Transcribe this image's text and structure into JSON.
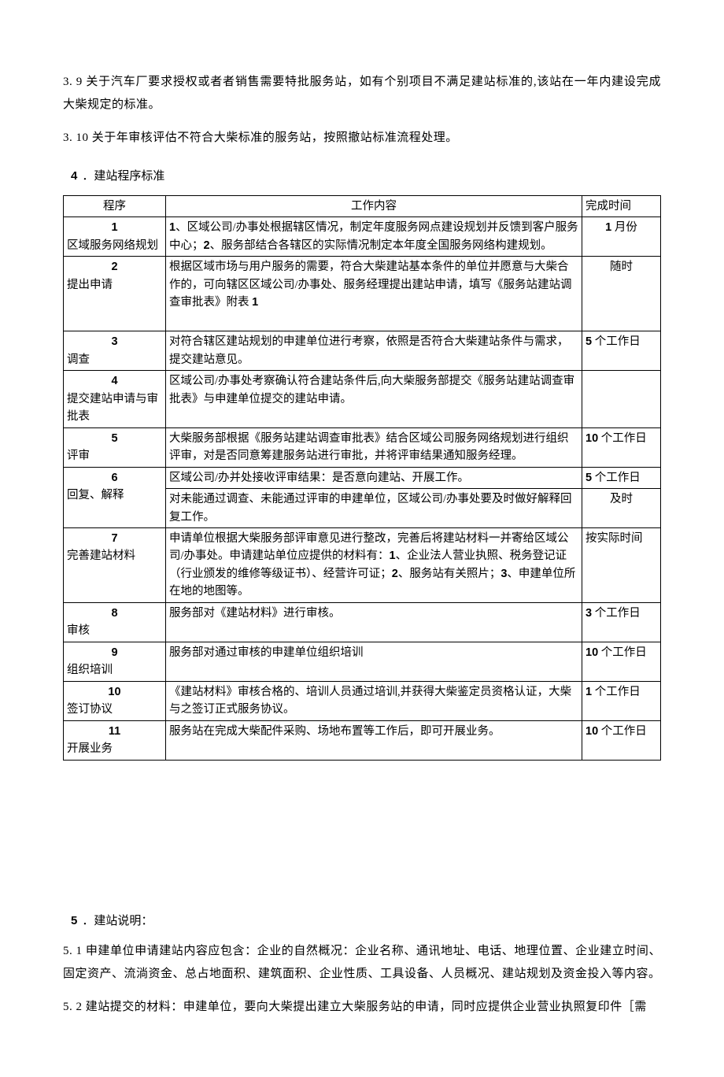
{
  "top_paragraphs": {
    "p1": "3. 9 关于汽车厂要求授权或者者销售需要特批服务站，如有个别项目不满足建站标准的,该站在一年内建设完成大柴规定的标准。",
    "p2": "3. 10 关于年审核评估不符合大柴标准的服务站，按照撤站标准流程处理。"
  },
  "section4": {
    "num": "4",
    "title": "．建站程序标准",
    "headers": {
      "proc": "程序",
      "content": "工作内容",
      "time": "完成时间"
    },
    "rows": [
      {
        "num": "1",
        "name": "区域服务网络规划",
        "content": "1、区域公司/办事处根据辖区情况，制定年度服务网点建设规划并反馈到客户服务中心；2、服务部结合各辖区的实际情况制定本年度全国服务网络构建规划。",
        "time": "1 月份",
        "time_center": true
      },
      {
        "num": "2",
        "name": "提出申请",
        "content": "根据区域市场与用户服务的需要，符合大柴建站基本条件的单位并愿意与大柴合作的，可向辖区区域公司/办事处、服务经理提出建站申请，填写《服务站建站调查审批表》附表 1",
        "time": "随时",
        "time_center": true,
        "extra_pad": true
      },
      {
        "num": "3",
        "name": "调查",
        "content": "对符合辖区建站规划的申建单位进行考察，依照是否符合大柴建站条件与需求，提交建站意见。",
        "time": "5 个工作日"
      },
      {
        "num": "4",
        "name": "提交建站申请与审批表",
        "content": "区域公司/办事处考察确认符合建站条件后,向大柴服务部提交《服务站建站调查审批表》与申建单位提交的建站申请。",
        "time": "",
        "extra_pad": true
      },
      {
        "num": "5",
        "name": "评审",
        "content": "大柴服务部根据《服务站建站调查审批表》结合区域公司服务网络规划进行组织评审，对是否同意筹建服务站进行审批，并将评审结果通知服务经理。",
        "time": "10 个工作日"
      },
      {
        "num": "6",
        "name": "回复、解释",
        "content_rows": [
          {
            "text": "区域公司/办并处接收评审结果：是否意向建站、开展工作。",
            "time": "5 个工作日"
          },
          {
            "text": "对未能通过调查、未能通过评审的申建单位，区域公司/办事处要及时做好解释回复工作。",
            "time": "及时",
            "time_center": true
          }
        ]
      },
      {
        "num": "7",
        "name": "完善建站材料",
        "content": "申请单位根据大柴服务部评审意见进行整改，完善后将建站材料一并寄给区域公司/办事处。申请建站单位应提供的材料有：1、企业法人营业执照、税务登记证（行业颁发的维修等级证书）、经营许可证；2、服务站有关照片；3、申建单位所在地的地图等。",
        "time": "按实际时间"
      },
      {
        "num": "8",
        "name": "审核",
        "content": "服务部对《建站材料》进行审核。",
        "time": "3 个工作日"
      },
      {
        "num": "9",
        "name": "组织培训",
        "content": "服务部对通过审核的申建单位组织培训",
        "time": "10 个工作日"
      },
      {
        "num": "10",
        "name": "签订协议",
        "content": "《建站材料》审核合格的、培训人员通过培训,并获得大柴鉴定员资格认证，大柴与之签订正式服务协议。",
        "time": "1 个工作日"
      },
      {
        "num": "11",
        "name": "开展业务",
        "content": "服务站在完成大柴配件采购、场地布置等工作后，即可开展业务。",
        "time": "10 个工作日",
        "extra_pad": true
      }
    ]
  },
  "section5": {
    "num": "5",
    "title": "．建站说明：",
    "p1": "5. 1 申建单位申请建站内容应包含：企业的自然概况：企业名称、通讯地址、电话、地理位置、企业建立时间、固定资产、流淌资金、总占地面积、建筑面积、企业性质、工具设备、人员概况、建站规划及资金投入等内容。",
    "p2": "5. 2 建站提交的材料：申建单位，要向大柴提出建立大柴服务站的申请，同时应提供企业营业执照复印件［需"
  }
}
